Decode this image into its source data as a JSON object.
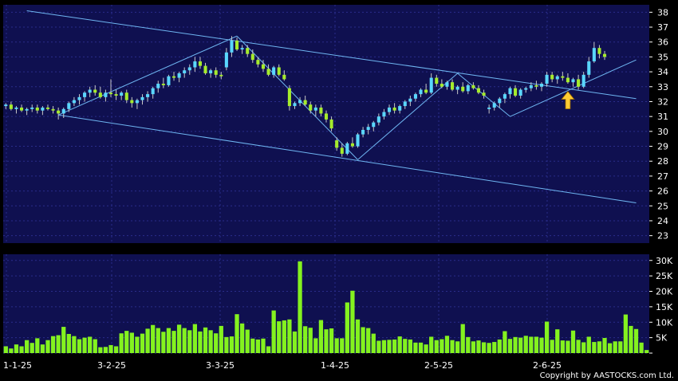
{
  "chart_data": [
    {
      "type": "candlestick",
      "title": "",
      "ylim": [
        22.5,
        38.5
      ],
      "y_ticks": [
        "38",
        "37",
        "36",
        "35",
        "34",
        "33",
        "32",
        "31",
        "30",
        "29",
        "28",
        "27",
        "26",
        "25",
        "24",
        "23"
      ],
      "x_ticks": [
        "1-1-25",
        "3-2-25",
        "3-3-25",
        "1-4-25",
        "2-5-25",
        "2-6-25"
      ],
      "grid": true,
      "series": [
        {
          "values": [
            [
              31.7,
              31.9,
              31.5,
              31.8
            ],
            [
              31.8,
              32.0,
              31.4,
              31.5
            ],
            [
              31.5,
              31.7,
              31.2,
              31.6
            ],
            [
              31.6,
              31.8,
              31.3,
              31.4
            ],
            [
              31.4,
              31.6,
              31.1,
              31.5
            ],
            [
              31.5,
              31.8,
              31.3,
              31.6
            ],
            [
              31.6,
              31.8,
              31.2,
              31.4
            ],
            [
              31.4,
              31.7,
              31.1,
              31.6
            ],
            [
              31.6,
              31.8,
              31.4,
              31.5
            ],
            [
              31.5,
              31.7,
              31.2,
              31.4
            ],
            [
              31.4,
              31.6,
              30.8,
              31.2
            ],
            [
              31.2,
              31.6,
              30.9,
              31.5
            ],
            [
              31.5,
              32.0,
              31.3,
              31.9
            ],
            [
              31.9,
              32.3,
              31.7,
              32.1
            ],
            [
              32.1,
              32.5,
              31.8,
              32.3
            ],
            [
              32.3,
              32.7,
              32.0,
              32.6
            ],
            [
              32.6,
              33.0,
              32.3,
              32.8
            ],
            [
              32.8,
              33.1,
              32.4,
              32.6
            ],
            [
              32.6,
              33.0,
              32.2,
              32.3
            ],
            [
              32.3,
              32.8,
              32.0,
              32.6
            ],
            [
              32.6,
              33.5,
              32.3,
              32.5
            ],
            [
              32.5,
              32.8,
              32.1,
              32.4
            ],
            [
              32.4,
              32.7,
              32.1,
              32.6
            ],
            [
              32.6,
              32.8,
              31.9,
              32.1
            ],
            [
              32.1,
              32.3,
              31.6,
              31.9
            ],
            [
              31.9,
              32.2,
              31.5,
              32.1
            ],
            [
              32.1,
              32.5,
              31.8,
              32.3
            ],
            [
              32.3,
              32.7,
              32.0,
              32.5
            ],
            [
              32.5,
              33.0,
              32.2,
              32.9
            ],
            [
              32.9,
              33.4,
              32.6,
              33.2
            ],
            [
              33.2,
              33.6,
              32.9,
              33.1
            ],
            [
              33.1,
              33.8,
              33.0,
              33.7
            ],
            [
              33.7,
              34.0,
              33.4,
              33.6
            ],
            [
              33.6,
              34.0,
              33.3,
              33.9
            ],
            [
              33.9,
              34.3,
              33.6,
              34.1
            ],
            [
              34.1,
              34.5,
              33.8,
              34.3
            ],
            [
              34.3,
              35.0,
              34.0,
              34.7
            ],
            [
              34.7,
              35.0,
              34.2,
              34.4
            ],
            [
              34.4,
              34.6,
              33.8,
              33.9
            ],
            [
              33.9,
              34.2,
              33.6,
              34.1
            ],
            [
              34.1,
              34.3,
              33.6,
              33.8
            ],
            [
              33.8,
              34.0,
              33.5,
              33.7
            ],
            [
              34.3,
              35.6,
              34.1,
              35.3
            ],
            [
              35.3,
              36.4,
              35.0,
              36.1
            ],
            [
              36.1,
              36.3,
              35.4,
              35.5
            ],
            [
              35.5,
              35.8,
              35.2,
              35.6
            ],
            [
              35.6,
              35.8,
              35.0,
              35.2
            ],
            [
              35.2,
              35.5,
              34.6,
              34.8
            ],
            [
              34.8,
              35.0,
              34.3,
              34.5
            ],
            [
              34.5,
              34.8,
              34.0,
              34.2
            ],
            [
              34.2,
              34.5,
              33.7,
              33.8
            ],
            [
              33.8,
              34.4,
              33.6,
              34.3
            ],
            [
              34.3,
              34.5,
              33.7,
              33.8
            ],
            [
              33.8,
              34.1,
              33.4,
              33.5
            ],
            [
              32.9,
              33.1,
              31.4,
              31.7
            ],
            [
              31.7,
              32.0,
              31.5,
              31.9
            ],
            [
              31.9,
              32.3,
              31.7,
              32.1
            ],
            [
              32.1,
              32.4,
              31.7,
              31.8
            ],
            [
              31.8,
              32.0,
              31.2,
              31.4
            ],
            [
              31.4,
              31.8,
              31.0,
              31.6
            ],
            [
              31.6,
              31.8,
              31.0,
              31.2
            ],
            [
              31.2,
              31.4,
              30.6,
              30.8
            ],
            [
              30.8,
              31.0,
              30.0,
              30.2
            ],
            [
              29.4,
              29.6,
              28.7,
              28.9
            ],
            [
              28.9,
              29.2,
              28.3,
              28.5
            ],
            [
              28.5,
              29.3,
              28.4,
              29.2
            ],
            [
              29.2,
              29.6,
              28.9,
              29.0
            ],
            [
              29.0,
              29.9,
              28.9,
              29.8
            ],
            [
              29.8,
              30.3,
              29.6,
              30.1
            ],
            [
              30.1,
              30.5,
              29.8,
              30.3
            ],
            [
              30.3,
              30.7,
              30.0,
              30.6
            ],
            [
              30.6,
              31.2,
              30.4,
              31.0
            ],
            [
              31.0,
              31.5,
              30.8,
              31.3
            ],
            [
              31.3,
              31.8,
              31.1,
              31.6
            ],
            [
              31.6,
              31.9,
              31.2,
              31.4
            ],
            [
              31.4,
              31.8,
              31.2,
              31.7
            ],
            [
              31.7,
              32.1,
              31.5,
              32.0
            ],
            [
              32.0,
              32.4,
              31.7,
              32.2
            ],
            [
              32.2,
              32.6,
              32.0,
              32.5
            ],
            [
              32.5,
              32.9,
              32.3,
              32.8
            ],
            [
              32.8,
              33.2,
              32.5,
              32.6
            ],
            [
              32.6,
              33.9,
              32.5,
              33.6
            ],
            [
              33.6,
              33.8,
              33.0,
              33.2
            ],
            [
              33.2,
              33.5,
              32.9,
              33.0
            ],
            [
              33.0,
              33.4,
              32.8,
              33.3
            ],
            [
              33.3,
              33.5,
              32.7,
              32.8
            ],
            [
              32.8,
              33.1,
              32.5,
              33.0
            ],
            [
              33.0,
              33.3,
              32.6,
              32.7
            ],
            [
              32.7,
              33.2,
              32.5,
              33.1
            ],
            [
              33.1,
              33.3,
              32.8,
              32.9
            ],
            [
              32.9,
              33.1,
              32.5,
              32.6
            ],
            [
              32.6,
              32.8,
              32.2,
              32.4
            ],
            [
              31.5,
              31.8,
              31.2,
              31.6
            ],
            [
              31.6,
              32.0,
              31.4,
              31.9
            ],
            [
              31.9,
              32.3,
              31.6,
              32.2
            ],
            [
              32.2,
              32.6,
              31.9,
              32.5
            ],
            [
              32.5,
              33.0,
              32.2,
              32.9
            ],
            [
              32.9,
              33.1,
              32.3,
              32.4
            ],
            [
              32.4,
              32.9,
              32.2,
              32.8
            ],
            [
              32.8,
              33.0,
              32.6,
              32.9
            ],
            [
              32.9,
              33.3,
              32.7,
              33.1
            ],
            [
              33.1,
              33.4,
              32.8,
              33.0
            ],
            [
              33.0,
              33.3,
              32.7,
              33.2
            ],
            [
              33.2,
              34.0,
              33.0,
              33.8
            ],
            [
              33.8,
              34.0,
              33.3,
              33.5
            ],
            [
              33.5,
              33.8,
              33.2,
              33.7
            ],
            [
              33.7,
              34.0,
              33.4,
              33.6
            ],
            [
              33.6,
              33.9,
              33.2,
              33.3
            ],
            [
              33.3,
              33.6,
              33.0,
              33.5
            ],
            [
              33.5,
              33.8,
              32.8,
              33.0
            ],
            [
              33.0,
              34.0,
              32.9,
              33.8
            ],
            [
              33.8,
              35.0,
              33.6,
              34.7
            ],
            [
              34.7,
              36.0,
              34.6,
              35.6
            ],
            [
              35.6,
              35.8,
              34.9,
              35.2
            ],
            [
              35.2,
              35.4,
              34.8,
              35.0
            ]
          ]
        }
      ],
      "trendlines": [
        {
          "from": [
            4,
            38.1
          ],
          "to": [
            120,
            32.2
          ]
        },
        {
          "from": [
            10,
            31.1
          ],
          "to": [
            120,
            25.2
          ]
        },
        {
          "from": [
            10,
            31.1
          ],
          "to": [
            44,
            36.4
          ]
        },
        {
          "from": [
            44,
            36.4
          ],
          "to": [
            67,
            28.1
          ]
        },
        {
          "from": [
            67,
            28.1
          ],
          "to": [
            86,
            33.9
          ]
        },
        {
          "from": [
            86,
            33.9
          ],
          "to": [
            96,
            31.0
          ]
        },
        {
          "from": [
            96,
            31.0
          ],
          "to": [
            120,
            34.8
          ]
        }
      ],
      "arrow": {
        "x": 107,
        "y": 32.9,
        "color": "#ffcc33"
      }
    },
    {
      "type": "bar",
      "ylim": [
        0,
        32000
      ],
      "y_ticks": [
        "30K",
        "25K",
        "20K",
        "15K",
        "10K",
        "5K",
        "0"
      ],
      "values": [
        2200,
        1500,
        2800,
        2200,
        4200,
        3300,
        4800,
        2800,
        4200,
        5500,
        5800,
        8500,
        6200,
        5500,
        4500,
        5000,
        5300,
        4500,
        1900,
        2000,
        2600,
        2200,
        6400,
        7200,
        6600,
        5300,
        6300,
        7900,
        9100,
        8100,
        6900,
        8100,
        7200,
        9200,
        8100,
        7400,
        9400,
        7000,
        8300,
        7400,
        6400,
        8800,
        5200,
        5400,
        12600,
        9600,
        7600,
        4700,
        4400,
        4700,
        2200,
        13800,
        10300,
        10600,
        10900,
        7000,
        29700,
        8700,
        8200,
        4800,
        10700,
        7700,
        8000,
        4800,
        4800,
        16400,
        20200,
        10900,
        8400,
        8100,
        6300,
        4000,
        4200,
        4300,
        4400,
        5400,
        4600,
        4400,
        3400,
        3400,
        2800,
        5300,
        4200,
        4500,
        5600,
        4200,
        3800,
        9400,
        5200,
        3800,
        4100,
        3500,
        3300,
        3600,
        4400,
        7100,
        4600,
        5200,
        5000,
        5600,
        5300,
        5300,
        5000,
        10200,
        4300,
        7700,
        4100,
        4000,
        7300,
        4300,
        3500,
        5300,
        3600,
        3800,
        4900,
        3200,
        3800,
        3800,
        12500,
        8800,
        7800,
        3400,
        1000
      ]
    }
  ],
  "credit": "Copyright by AASTOCKS.com Ltd."
}
